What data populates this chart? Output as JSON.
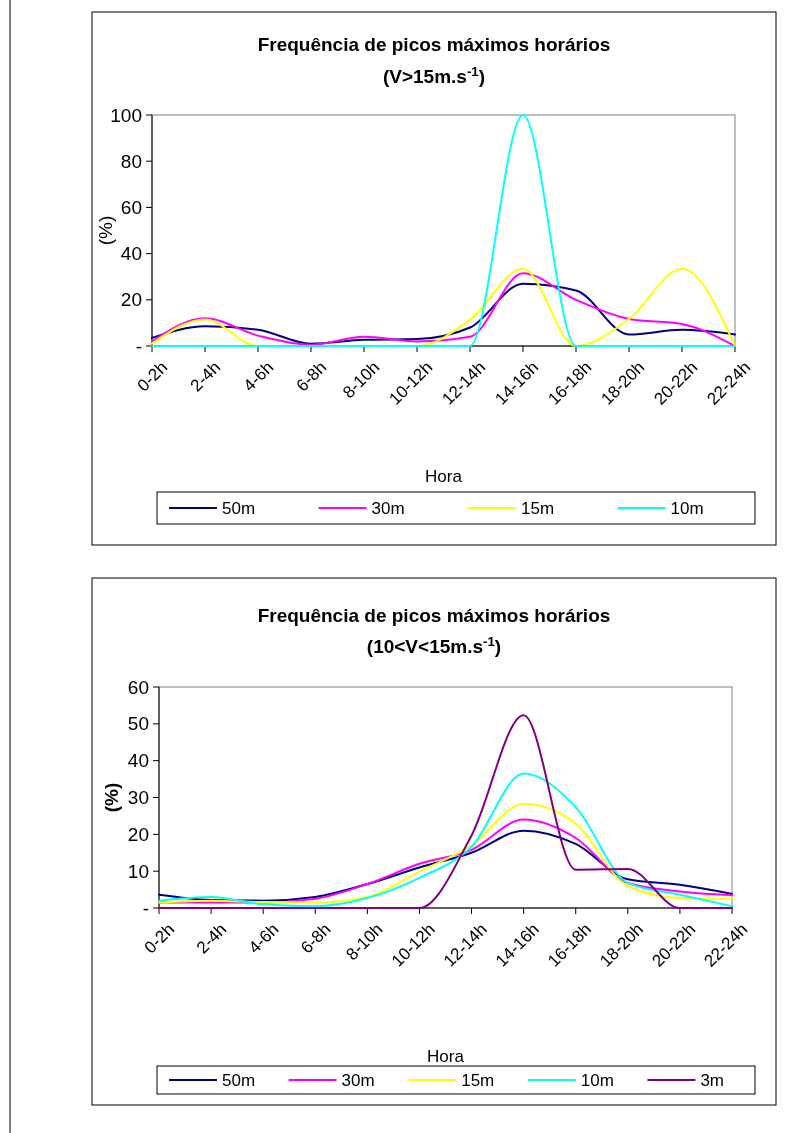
{
  "chart_data": [
    {
      "type": "line",
      "title": "Frequência de picos máximos horários",
      "subtitle": "(V>15m.s$^{-1}$)",
      "xlabel": "Hora",
      "ylabel": "(%)",
      "categories": [
        "0-2h",
        "2-4h",
        "4-6h",
        "6-8h",
        "8-10h",
        "10-12h",
        "12-14h",
        "14-16h",
        "16-18h",
        "18-20h",
        "20-22h",
        "22-24h"
      ],
      "series": [
        {
          "name": "50m",
          "color": "#000080",
          "values": [
            3.5,
            8.5,
            7,
            1,
            2.7,
            3,
            8,
            27,
            24,
            5,
            7,
            5
          ]
        },
        {
          "name": "30m",
          "color": "#ff00ff",
          "values": [
            2,
            12,
            4.5,
            0.5,
            4,
            2,
            4,
            31.5,
            20,
            11.7,
            9.5,
            0
          ]
        },
        {
          "name": "15m",
          "color": "#ffff00",
          "values": [
            1,
            11.5,
            0,
            0,
            0,
            0,
            11.4,
            33.4,
            0,
            11.7,
            33.4,
            0
          ]
        },
        {
          "name": "10m",
          "color": "#00ffff",
          "values": [
            0,
            0,
            0,
            0,
            0,
            0,
            0,
            100,
            0,
            0,
            0,
            0
          ]
        }
      ],
      "ylim": [
        0,
        100
      ],
      "yticks": [
        {
          "value": 0,
          "label": "-"
        },
        20,
        40,
        60,
        80,
        100
      ],
      "grid": false,
      "legend": "bottom",
      "marker": "none"
    },
    {
      "type": "line",
      "title": "Frequência de picos máximos horários",
      "subtitle": "(10<V<15m.s$^{-1}$)",
      "xlabel": "Hora",
      "ylabel": "(%)",
      "categories": [
        "0-2h",
        "2-4h",
        "4-6h",
        "6-8h",
        "8-10h",
        "10-12h",
        "12-14h",
        "14-16h",
        "16-18h",
        "18-20h",
        "20-22h",
        "22-24h"
      ],
      "series": [
        {
          "name": "50m",
          "color": "#000080",
          "values": [
            3.6,
            2.2,
            2,
            3,
            6.5,
            11,
            15,
            21,
            17.4,
            7.8,
            6.3,
            3.8
          ]
        },
        {
          "name": "30m",
          "color": "#ff00ff",
          "values": [
            1.5,
            1.5,
            1.5,
            2.5,
            6.5,
            12,
            15.8,
            24,
            19,
            6.8,
            4.5,
            3.5
          ]
        },
        {
          "name": "15m",
          "color": "#ffff00",
          "values": [
            1.5,
            2,
            1.6,
            1.5,
            3,
            9.9,
            17,
            28.3,
            22.9,
            5.9,
            2.7,
            2.5
          ]
        },
        {
          "name": "10m",
          "color": "#00ffff",
          "values": [
            2,
            3,
            1,
            0.5,
            2.7,
            8.2,
            16.6,
            36.5,
            27.4,
            6.8,
            3.6,
            0.5
          ]
        },
        {
          "name": "3m",
          "color": "#800080",
          "values": [
            0,
            0,
            0,
            0,
            0,
            0,
            19.7,
            52.3,
            10.4,
            10.6,
            0,
            0
          ]
        }
      ],
      "ylim": [
        0,
        60
      ],
      "yticks": [
        {
          "value": 0,
          "label": "-"
        },
        10,
        20,
        30,
        40,
        50,
        60
      ],
      "grid": false,
      "legend": "bottom",
      "marker": "none"
    }
  ]
}
